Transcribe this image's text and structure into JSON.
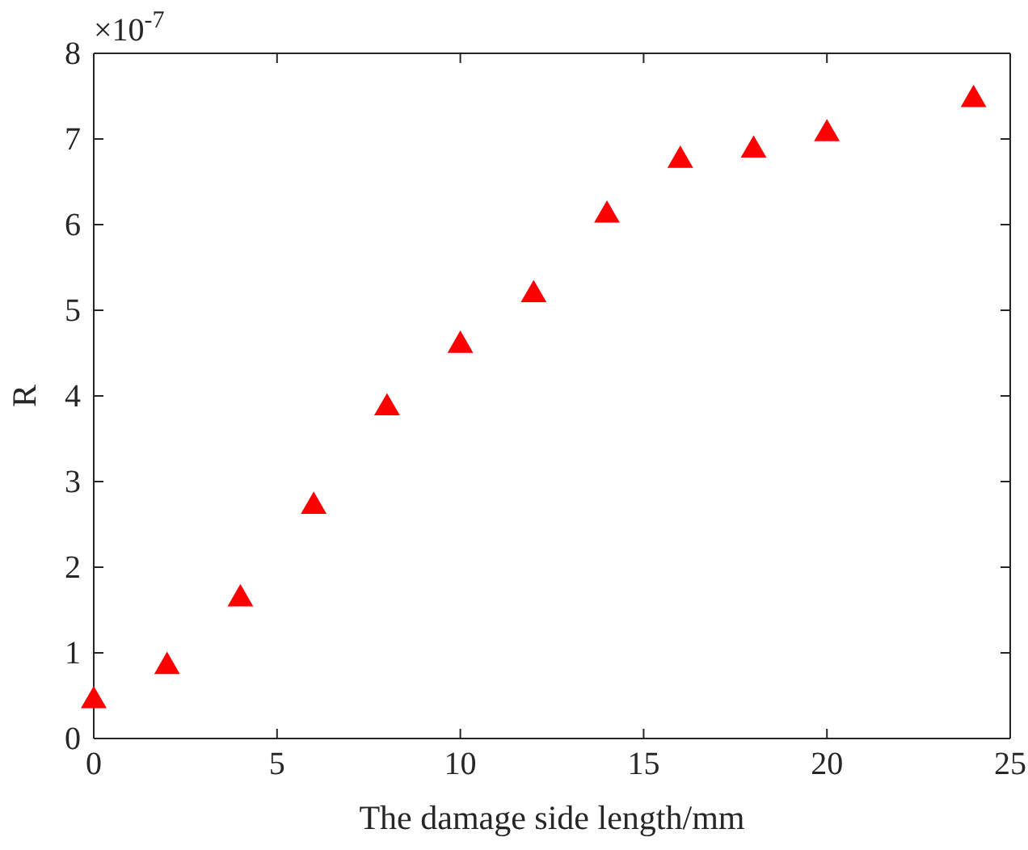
{
  "chart_data": {
    "type": "scatter",
    "xlabel": "The damage side length/mm",
    "ylabel": "R",
    "annotations": [
      "×10$^{-7}$"
    ],
    "x": [
      0,
      2,
      4,
      6,
      8,
      10,
      12,
      14,
      16,
      18,
      20,
      24
    ],
    "series": [
      {
        "color": "#ff0000",
        "values": [
          0.44,
          0.84,
          1.63,
          2.71,
          3.86,
          4.59,
          5.18,
          6.11,
          6.75,
          6.87,
          7.06,
          7.46
        ]
      }
    ],
    "xlim": [
      0,
      25
    ],
    "xticks": [
      0,
      5,
      10,
      15,
      20,
      25
    ],
    "ylim": [
      0,
      8
    ],
    "yticks": [
      0,
      1,
      2,
      3,
      4,
      5,
      6,
      7,
      8
    ],
    "marker": "triangle",
    "grid": false
  }
}
